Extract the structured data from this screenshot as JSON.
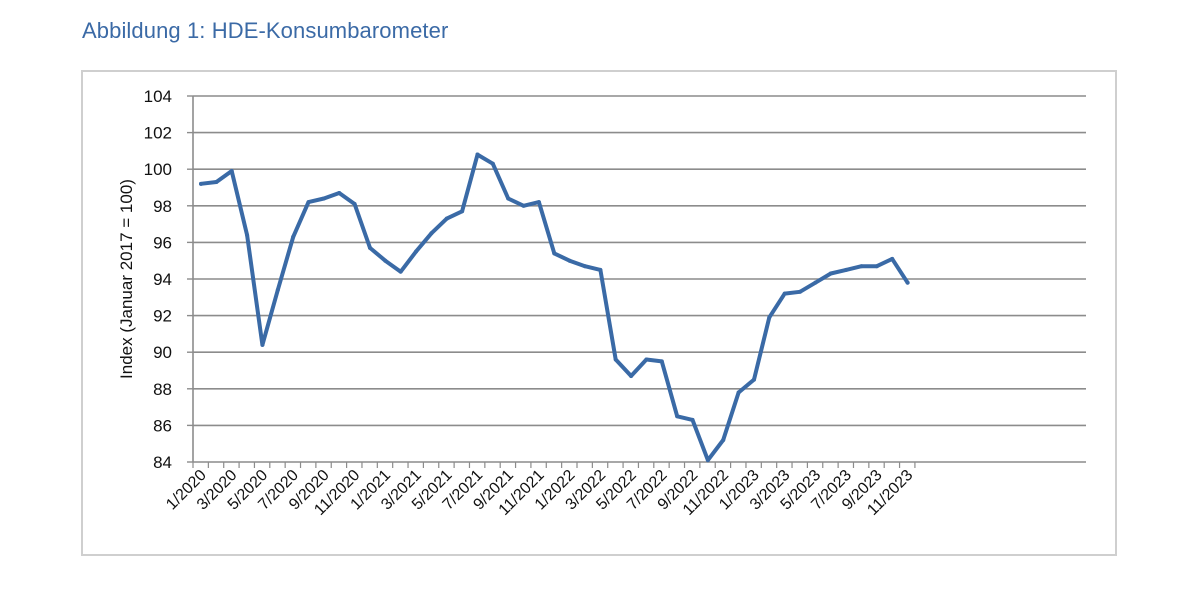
{
  "figure": {
    "caption": "Abbildung 1: HDE-Konsumbarometer"
  },
  "chart_data": {
    "type": "line",
    "title": "",
    "xlabel": "",
    "ylabel": "Index (Januar 2017 = 100)",
    "ylim": [
      84,
      104
    ],
    "yticks": [
      84,
      86,
      88,
      90,
      92,
      94,
      96,
      98,
      100,
      102,
      104
    ],
    "grid": "horizontal",
    "legend": "none",
    "line_color": "#3a6aa6",
    "x": [
      "1/2020",
      "2/2020",
      "3/2020",
      "4/2020",
      "5/2020",
      "6/2020",
      "7/2020",
      "8/2020",
      "9/2020",
      "10/2020",
      "11/2020",
      "12/2020",
      "1/2021",
      "2/2021",
      "3/2021",
      "4/2021",
      "5/2021",
      "6/2021",
      "7/2021",
      "8/2021",
      "9/2021",
      "10/2021",
      "11/2021",
      "12/2021",
      "1/2022",
      "2/2022",
      "3/2022",
      "4/2022",
      "5/2022",
      "6/2022",
      "7/2022",
      "8/2022",
      "9/2022",
      "10/2022",
      "11/2022",
      "12/2022",
      "1/2023",
      "2/2023",
      "3/2023",
      "4/2023",
      "5/2023",
      "6/2023",
      "7/2023",
      "8/2023",
      "9/2023",
      "10/2023",
      "11/2023"
    ],
    "xtick_labels": [
      "1/2020",
      "3/2020",
      "5/2020",
      "7/2020",
      "9/2020",
      "11/2020",
      "1/2021",
      "3/2021",
      "5/2021",
      "7/2021",
      "9/2021",
      "11/2021",
      "1/2022",
      "3/2022",
      "5/2022",
      "7/2022",
      "9/2022",
      "11/2022",
      "1/2023",
      "3/2023",
      "5/2023",
      "7/2023",
      "9/2023",
      "11/2023"
    ],
    "series": [
      {
        "values": [
          99.2,
          99.3,
          99.9,
          96.4,
          90.4,
          93.4,
          96.3,
          98.2,
          98.4,
          98.7,
          98.1,
          95.7,
          95.0,
          94.4,
          95.5,
          96.5,
          97.3,
          97.7,
          100.8,
          100.3,
          98.4,
          98.0,
          98.2,
          95.4,
          95.0,
          94.7,
          94.5,
          89.6,
          88.7,
          89.6,
          89.5,
          86.5,
          86.3,
          84.1,
          85.2,
          87.8,
          88.5,
          91.9,
          93.2,
          93.3,
          93.8,
          94.3,
          94.5,
          94.7,
          94.7,
          95.1,
          93.8
        ]
      }
    ]
  }
}
